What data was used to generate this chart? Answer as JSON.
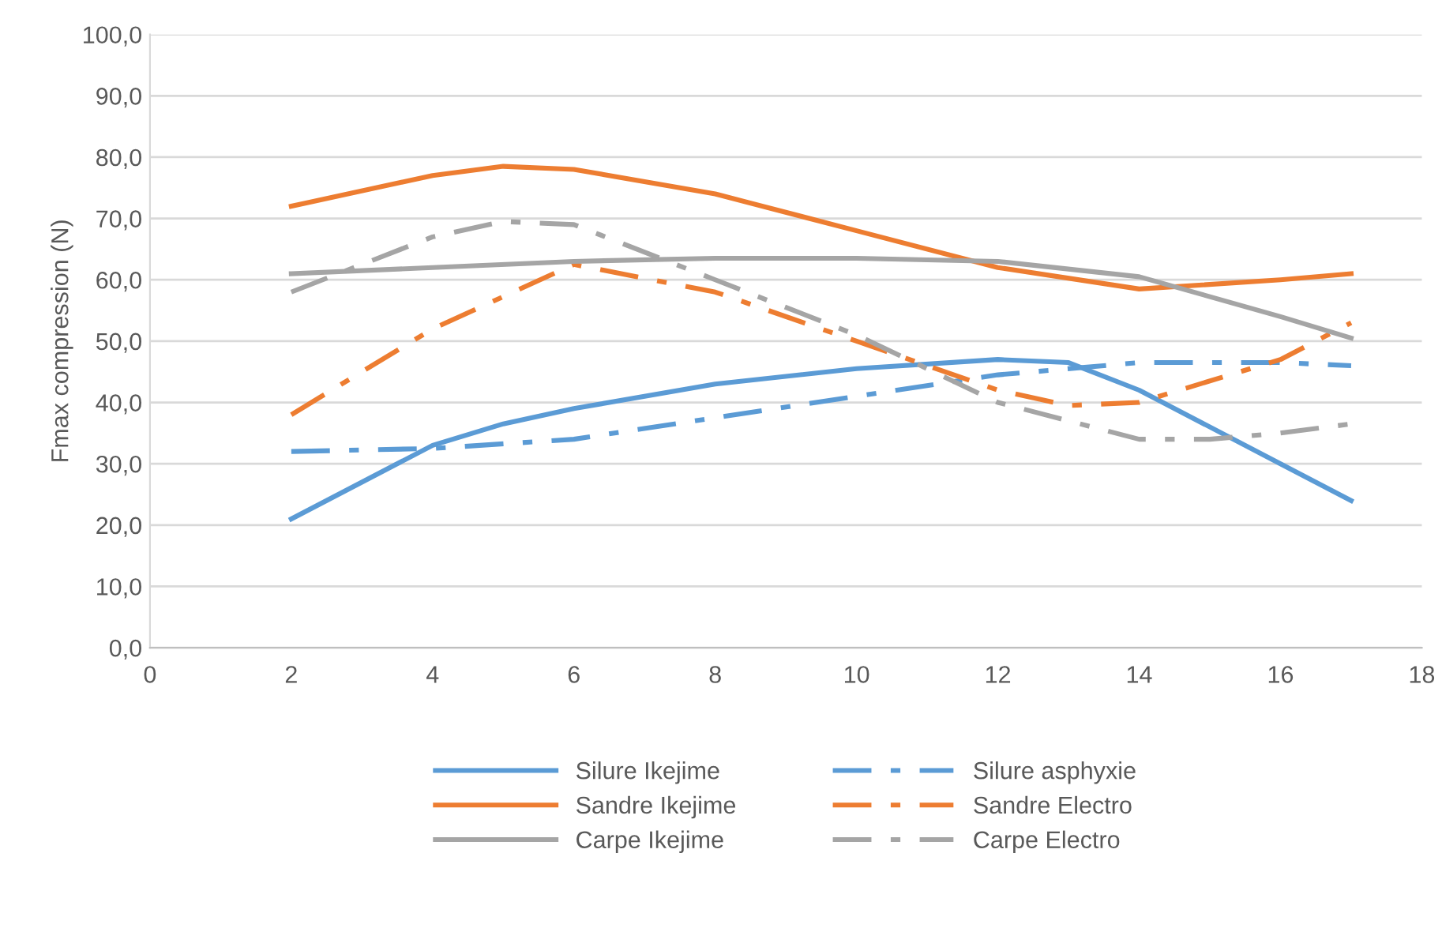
{
  "chart_data": {
    "type": "line",
    "ylabel": "Fmax compression (N)",
    "xlim": [
      0,
      18
    ],
    "xticks": [
      0,
      2,
      4,
      6,
      8,
      10,
      12,
      14,
      16,
      18
    ],
    "ylim": [
      0,
      100
    ],
    "yticks": [
      {
        "value": 0,
        "label": "0,0"
      },
      {
        "value": 10,
        "label": "10,0"
      },
      {
        "value": 20,
        "label": "20,0"
      },
      {
        "value": 30,
        "label": "30,0"
      },
      {
        "value": 40,
        "label": "40,0"
      },
      {
        "value": 50,
        "label": "50,0"
      },
      {
        "value": 60,
        "label": "60,0"
      },
      {
        "value": 70,
        "label": "70,0"
      },
      {
        "value": 80,
        "label": "80,0"
      },
      {
        "value": 90,
        "label": "90,0"
      },
      {
        "value": 100,
        "label": "100,0"
      }
    ],
    "grid": "y",
    "legend": "bottom",
    "marker": "none",
    "series": [
      {
        "name": "Silure Ikejime",
        "color": "#5b9bd5",
        "line_style": "solid",
        "x": [
          2,
          4,
          5,
          6,
          8,
          10,
          12,
          13,
          14,
          16,
          17
        ],
        "values": [
          21,
          33,
          36.5,
          39,
          43,
          45.5,
          47,
          46.5,
          42,
          30,
          24
        ]
      },
      {
        "name": "Silure asphyxie",
        "color": "#5b9bd5",
        "line_style": "dashed",
        "x": [
          2,
          4,
          6,
          8,
          10,
          12,
          14,
          16,
          17
        ],
        "values": [
          32,
          32.5,
          34,
          37.5,
          41,
          44.5,
          46.5,
          46.5,
          46
        ]
      },
      {
        "name": "Sandre Ikejime",
        "color": "#ed7d31",
        "line_style": "solid",
        "x": [
          2,
          4,
          5,
          6,
          8,
          10,
          12,
          14,
          16,
          17
        ],
        "values": [
          72,
          77,
          78.5,
          78,
          74,
          68,
          62,
          58.5,
          60,
          61
        ]
      },
      {
        "name": "Sandre Electro",
        "color": "#ed7d31",
        "line_style": "dashed",
        "x": [
          2,
          4,
          6,
          8,
          10,
          12,
          13,
          14,
          16,
          17
        ],
        "values": [
          38,
          52,
          62.5,
          58,
          50,
          42,
          39.5,
          40,
          47,
          53
        ]
      },
      {
        "name": "Carpe Ikejime",
        "color": "#a5a5a5",
        "line_style": "solid",
        "x": [
          2,
          4,
          6,
          8,
          10,
          12,
          14,
          16,
          17
        ],
        "values": [
          61,
          62,
          63,
          63.5,
          63.5,
          63,
          60.5,
          54,
          50.5
        ]
      },
      {
        "name": "Carpe Electro",
        "color": "#a5a5a5",
        "line_style": "dashed",
        "x": [
          2,
          4,
          5,
          6,
          8,
          10,
          12,
          14,
          15,
          16,
          17
        ],
        "values": [
          58,
          67,
          69.5,
          69,
          60,
          51,
          40,
          34,
          34,
          35,
          36.5
        ]
      }
    ]
  }
}
